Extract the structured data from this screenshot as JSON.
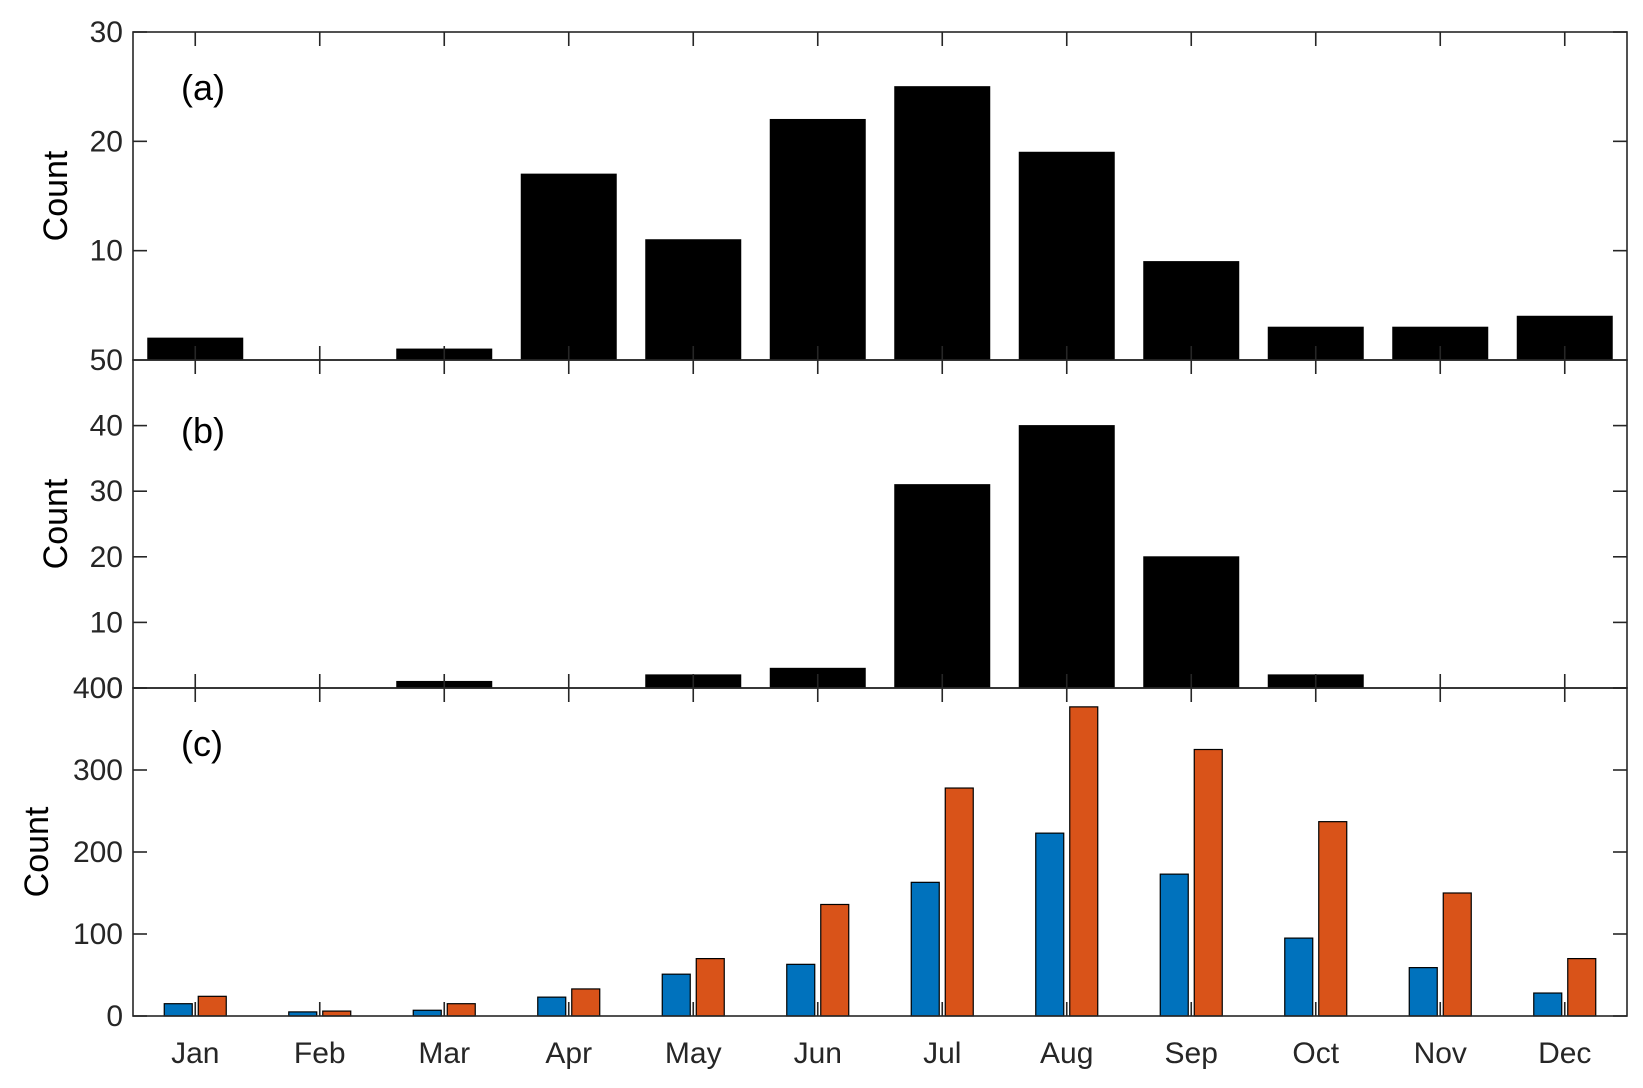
{
  "chart_data": [
    {
      "type": "bar",
      "panel_label": "(a)",
      "ylabel": "Count",
      "categories": [
        "Jan",
        "Feb",
        "Mar",
        "Apr",
        "May",
        "Jun",
        "Jul",
        "Aug",
        "Sep",
        "Oct",
        "Nov",
        "Dec"
      ],
      "values": [
        2,
        0,
        1,
        17,
        11,
        22,
        25,
        19,
        9,
        3,
        3,
        4
      ],
      "ylim": [
        0,
        30
      ],
      "yticks": [
        10,
        20,
        30
      ],
      "bottom_tick_label": "50",
      "color": "#000000",
      "grid": false
    },
    {
      "type": "bar",
      "panel_label": "(b)",
      "ylabel": "Count",
      "categories": [
        "Jan",
        "Feb",
        "Mar",
        "Apr",
        "May",
        "Jun",
        "Jul",
        "Aug",
        "Sep",
        "Oct",
        "Nov",
        "Dec"
      ],
      "values": [
        0,
        0,
        1,
        0,
        2,
        3,
        31,
        40,
        20,
        2,
        0,
        0
      ],
      "ylim": [
        0,
        50
      ],
      "yticks": [
        0,
        10,
        20,
        30,
        40
      ],
      "color": "#000000",
      "grid": false
    },
    {
      "type": "bar",
      "panel_label": "(c)",
      "ylabel": "Count",
      "categories": [
        "Jan",
        "Feb",
        "Mar",
        "Apr",
        "May",
        "Jun",
        "Jul",
        "Aug",
        "Sep",
        "Oct",
        "Nov",
        "Dec"
      ],
      "series": [
        {
          "color": "#0072bd",
          "values": [
            15,
            5,
            7,
            23,
            51,
            63,
            163,
            223,
            173,
            95,
            59,
            28
          ]
        },
        {
          "color": "#d95319",
          "values": [
            24,
            6,
            15,
            33,
            70,
            136,
            278,
            377,
            325,
            237,
            150,
            70
          ]
        }
      ],
      "ylim": [
        0,
        400
      ],
      "yticks": [
        0,
        100,
        200,
        300,
        400
      ],
      "grid": false
    }
  ]
}
